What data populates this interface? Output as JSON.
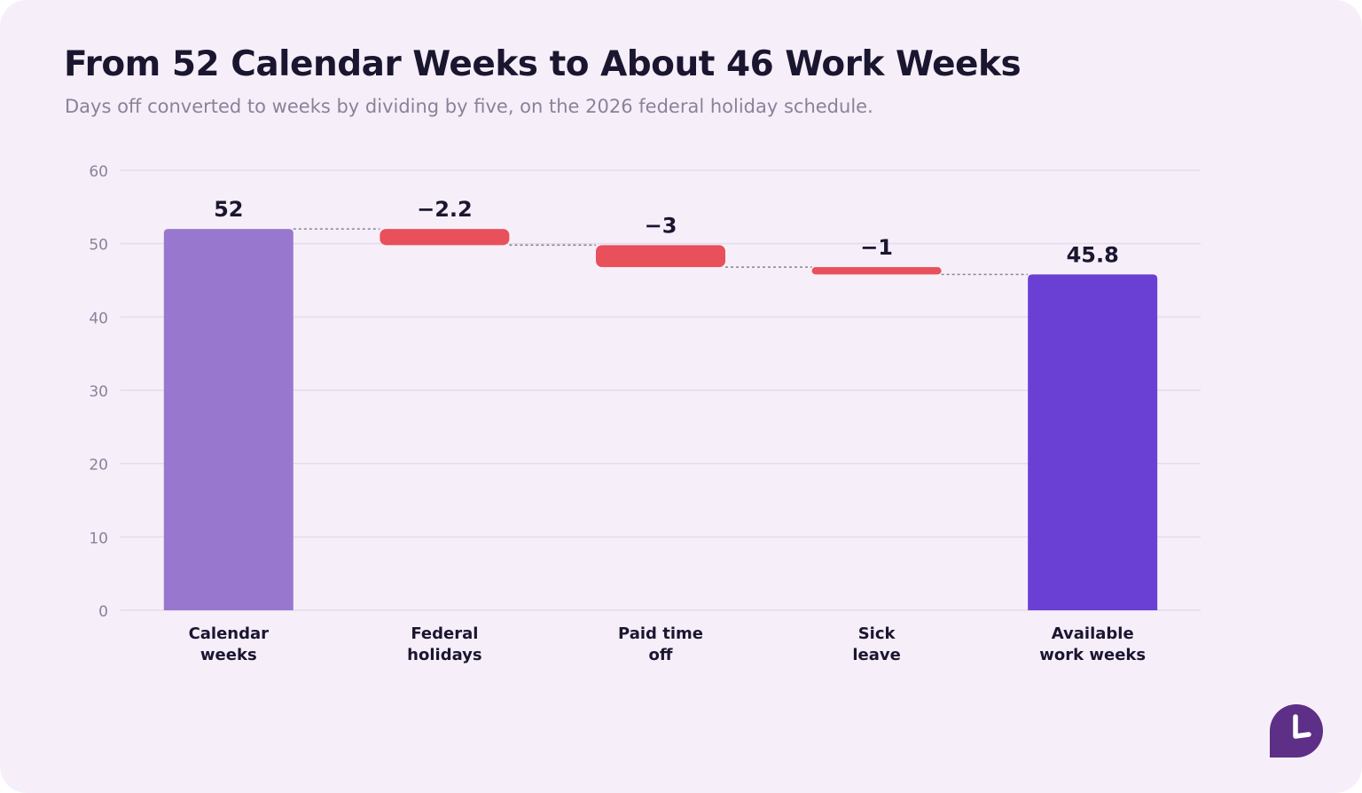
{
  "header": {
    "title": "From 52 Calendar Weeks to About 46 Work Weeks",
    "subtitle": "Days off converted to weeks by dividing by five, on the 2026 federal holiday schedule."
  },
  "chart_data": {
    "type": "bar",
    "subtype": "waterfall",
    "categories": [
      [
        "Calendar",
        "weeks"
      ],
      [
        "Federal",
        "holidays"
      ],
      [
        "Paid time",
        "off"
      ],
      [
        "Sick",
        "leave"
      ],
      [
        "Available",
        "work weeks"
      ]
    ],
    "values": [
      52,
      -2.2,
      -3,
      -1,
      45.8
    ],
    "kinds": [
      "total",
      "delta",
      "delta",
      "delta",
      "total"
    ],
    "value_labels": [
      "52",
      "−2.2",
      "−3",
      "−1",
      "45.8"
    ],
    "ylim": [
      0,
      60
    ],
    "yticks": [
      0,
      10,
      20,
      30,
      40,
      50,
      60
    ],
    "grid": true,
    "connectors": "dotted",
    "colors": {
      "start_total": "#9878cf",
      "end_total": "#6a3fd4",
      "decrease": "#e8505b",
      "grid": "#e4dcea",
      "connector": "#8b8496",
      "tick_label": "#8a8299",
      "category_label": "#1b1630",
      "value_label": "#1b1630"
    }
  },
  "logo": {
    "icon": "clock-icon",
    "color": "#5e2f86"
  }
}
